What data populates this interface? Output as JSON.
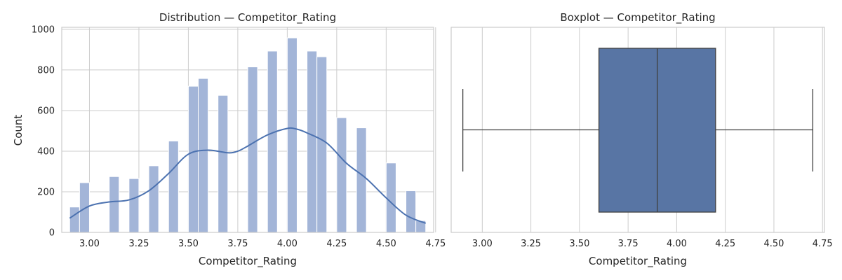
{
  "chart_data": [
    {
      "type": "bar",
      "title": "Distribution — Competitor_Rating",
      "xlabel": "Competitor_Rating",
      "ylabel": "Count",
      "xlim": [
        2.86,
        4.74
      ],
      "ylim": [
        0,
        1010
      ],
      "xticks": [
        3.0,
        3.25,
        3.5,
        3.75,
        4.0,
        4.25,
        4.5,
        4.75
      ],
      "xtick_labels": [
        "3.00",
        "3.25",
        "3.50",
        "3.75",
        "4.00",
        "4.25",
        "4.50",
        "4.75"
      ],
      "yticks": [
        0,
        200,
        400,
        600,
        800,
        1000
      ],
      "ytick_labels": [
        "0",
        "200",
        "400",
        "600",
        "800",
        "1000"
      ],
      "bin_width": 0.05,
      "bins": [
        {
          "x": 2.9,
          "count": 125
        },
        {
          "x": 2.95,
          "count": 245
        },
        {
          "x": 3.1,
          "count": 275
        },
        {
          "x": 3.2,
          "count": 265
        },
        {
          "x": 3.3,
          "count": 328
        },
        {
          "x": 3.4,
          "count": 450
        },
        {
          "x": 3.5,
          "count": 720
        },
        {
          "x": 3.55,
          "count": 758
        },
        {
          "x": 3.65,
          "count": 675
        },
        {
          "x": 3.8,
          "count": 815
        },
        {
          "x": 3.9,
          "count": 893
        },
        {
          "x": 4.0,
          "count": 958
        },
        {
          "x": 4.1,
          "count": 893
        },
        {
          "x": 4.15,
          "count": 865
        },
        {
          "x": 4.25,
          "count": 565
        },
        {
          "x": 4.35,
          "count": 515
        },
        {
          "x": 4.5,
          "count": 342
        },
        {
          "x": 4.6,
          "count": 205
        },
        {
          "x": 4.65,
          "count": 58
        }
      ],
      "kde": {
        "x": [
          2.9,
          3.0,
          3.1,
          3.2,
          3.3,
          3.4,
          3.5,
          3.6,
          3.7,
          3.75,
          3.8,
          3.9,
          4.0,
          4.05,
          4.1,
          4.2,
          4.3,
          4.4,
          4.5,
          4.6,
          4.7
        ],
        "y": [
          70,
          130,
          150,
          160,
          205,
          290,
          385,
          405,
          392,
          400,
          425,
          480,
          512,
          508,
          490,
          440,
          340,
          265,
          170,
          85,
          45
        ]
      },
      "colors": {
        "bar": "#a3b5d8",
        "kde": "#4c72b0"
      }
    },
    {
      "type": "boxplot",
      "title": "Boxplot — Competitor_Rating",
      "xlabel": "Competitor_Rating",
      "xlim": [
        2.84,
        4.76
      ],
      "xticks": [
        3.0,
        3.25,
        3.5,
        3.75,
        4.0,
        4.25,
        4.5,
        4.75
      ],
      "xtick_labels": [
        "3.00",
        "3.25",
        "3.50",
        "3.75",
        "4.00",
        "4.25",
        "4.50",
        "4.75"
      ],
      "whisker_low": 2.9,
      "q1": 3.6,
      "median": 3.9,
      "q3": 4.2,
      "whisker_high": 4.7,
      "colors": {
        "box": "#5875a4",
        "line": "#3f3f3f"
      }
    }
  ]
}
